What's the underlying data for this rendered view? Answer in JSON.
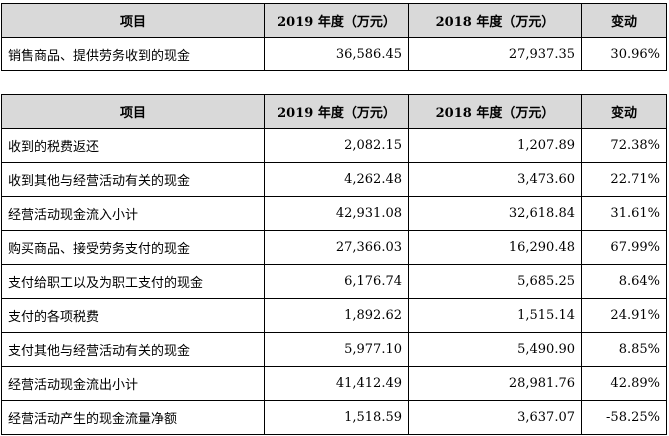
{
  "table1": {
    "headers": [
      "项目",
      "2019 年度（万元）",
      "2018 年度（万元）",
      "变动"
    ],
    "rows": [
      [
        "销售商品、提供劳务收到的现金",
        "36,586.45",
        "27,937.35",
        "30.96%"
      ]
    ]
  },
  "table2": {
    "headers": [
      "项目",
      "2019 年度（万元）",
      "2018 年度（万元）",
      "变动"
    ],
    "rows": [
      [
        "收到的税费返还",
        "2,082.15",
        "1,207.89",
        "72.38%"
      ],
      [
        "收到其他与经营活动有关的现金",
        "4,262.48",
        "3,473.60",
        "22.71%"
      ],
      [
        "经营活动现金流入小计",
        "42,931.08",
        "32,618.84",
        "31.61%"
      ],
      [
        "购买商品、接受劳务支付的现金",
        "27,366.03",
        "16,290.48",
        "67.99%"
      ],
      [
        "支付给职工以及为职工支付的现金",
        "6,176.74",
        "5,685.25",
        "8.64%"
      ],
      [
        "支付的各项税费",
        "1,892.62",
        "1,515.14",
        "24.91%"
      ],
      [
        "支付其他与经营活动有关的现金",
        "5,977.10",
        "5,490.90",
        "8.85%"
      ],
      [
        "经营活动现金流出小计",
        "41,412.49",
        "28,981.76",
        "42.89%"
      ],
      [
        "经营活动产生的现金流量净额",
        "1,518.59",
        "3,637.07",
        "-58.25%"
      ]
    ]
  }
}
